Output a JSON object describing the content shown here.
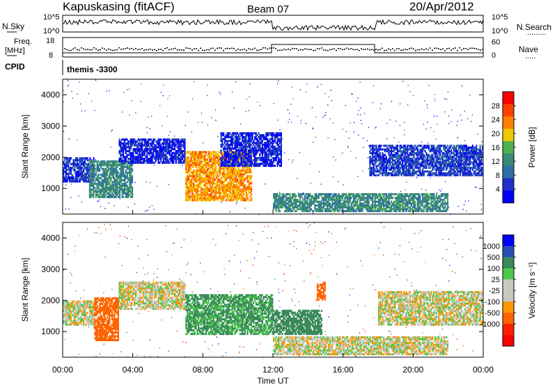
{
  "header": {
    "station": "Kapuskasing (fitACF)",
    "beam": "Beam 07",
    "date": "20/Apr/2012"
  },
  "sidebar_labels": {
    "nsky": "N.Sky",
    "freq_line1": "Freq.",
    "freq_line2": "[MHz]",
    "cpid": "CPID",
    "nsearch": "N.Search",
    "nsearch_dots": ".........",
    "nave": "Nave",
    "nave_dots": "....."
  },
  "noise_panel": {
    "left_ticks": [
      "10^5",
      "10^0"
    ],
    "right_ticks": [
      "10^5",
      "10^0"
    ]
  },
  "freq_panel": {
    "left_ticks": [
      "18",
      "8"
    ],
    "right_ticks": [
      "60",
      "0"
    ]
  },
  "cpid_panel": {
    "label": "themis -3300"
  },
  "colors": {
    "power_scale": [
      "#0000ff",
      "#2030c8",
      "#306fa8",
      "#3a8a78",
      "#50b050",
      "#f0c800",
      "#ff8000",
      "#ff4000",
      "#ff0000"
    ],
    "velocity_scale": [
      "#0000ff",
      "#2850b4",
      "#3a8a5a",
      "#50c850",
      "#c8c8c0",
      "#c8c8c0",
      "#ff9600",
      "#ff6400",
      "#ff2000",
      "#ff0000"
    ]
  },
  "chart_data": [
    {
      "type": "heatmap",
      "title": "",
      "xlabel": "Time UT",
      "ylabel": "Slant Range [km]",
      "xlim": [
        "00:00",
        "24:00"
      ],
      "ylim": [
        180,
        4500
      ],
      "x_ticks": [
        "00:00",
        "04:00",
        "08:00",
        "12:00",
        "16:00",
        "20:00",
        "00:00"
      ],
      "y_ticks": [
        1000,
        2000,
        3000,
        4000
      ],
      "colorbar": {
        "label": "Power [dB]",
        "ticks": [
          "4",
          "8",
          "12",
          "16",
          "20",
          "24",
          "28"
        ]
      },
      "regions": [
        {
          "t0": 0.0,
          "t1": 1.8,
          "r0": 1200,
          "r1": 2000,
          "value": 5
        },
        {
          "t0": 1.5,
          "t1": 4.0,
          "r0": 700,
          "r1": 1900,
          "value": 12
        },
        {
          "t0": 3.2,
          "t1": 7.0,
          "r0": 1800,
          "r1": 2600,
          "value": 4
        },
        {
          "t0": 7.0,
          "t1": 10.8,
          "r0": 600,
          "r1": 2200,
          "value": 22
        },
        {
          "t0": 9.0,
          "t1": 12.5,
          "r0": 1700,
          "r1": 2800,
          "value": 4
        },
        {
          "t0": 12.0,
          "t1": 22.0,
          "r0": 250,
          "r1": 850,
          "value": 12
        },
        {
          "t0": 17.5,
          "t1": 24.0,
          "r0": 1400,
          "r1": 2400,
          "value": 6
        }
      ]
    },
    {
      "type": "heatmap",
      "title": "",
      "xlabel": "Time UT",
      "ylabel": "Slant Range [km]",
      "xlim": [
        "00:00",
        "24:00"
      ],
      "ylim": [
        180,
        4500
      ],
      "x_ticks": [
        "00:00",
        "04:00",
        "08:00",
        "12:00",
        "16:00",
        "20:00",
        "00:00"
      ],
      "y_ticks": [
        1000,
        2000,
        3000,
        4000
      ],
      "colorbar": {
        "label": "Velocity [m s⁻¹]",
        "ticks": [
          "1000",
          "500",
          "100",
          "25",
          "-25",
          "-100",
          "-500",
          "-1000"
        ]
      },
      "regions": [
        {
          "t0": 0.0,
          "t1": 1.8,
          "r0": 1200,
          "r1": 2000,
          "value": 0
        },
        {
          "t0": 1.8,
          "t1": 3.2,
          "r0": 700,
          "r1": 2100,
          "value": -300
        },
        {
          "t0": 3.2,
          "t1": 7.0,
          "r0": 1700,
          "r1": 2600,
          "value": 0
        },
        {
          "t0": 7.0,
          "t1": 12.0,
          "r0": 900,
          "r1": 2200,
          "value": 120
        },
        {
          "t0": 12.0,
          "t1": 14.8,
          "r0": 900,
          "r1": 1700,
          "value": 300
        },
        {
          "t0": 14.5,
          "t1": 15.0,
          "r0": 2000,
          "r1": 2600,
          "value": -200
        },
        {
          "t0": 12.0,
          "t1": 22.0,
          "r0": 250,
          "r1": 850,
          "value": 0
        },
        {
          "t0": 18.0,
          "t1": 24.0,
          "r0": 1200,
          "r1": 2300,
          "value": 0
        }
      ]
    }
  ]
}
